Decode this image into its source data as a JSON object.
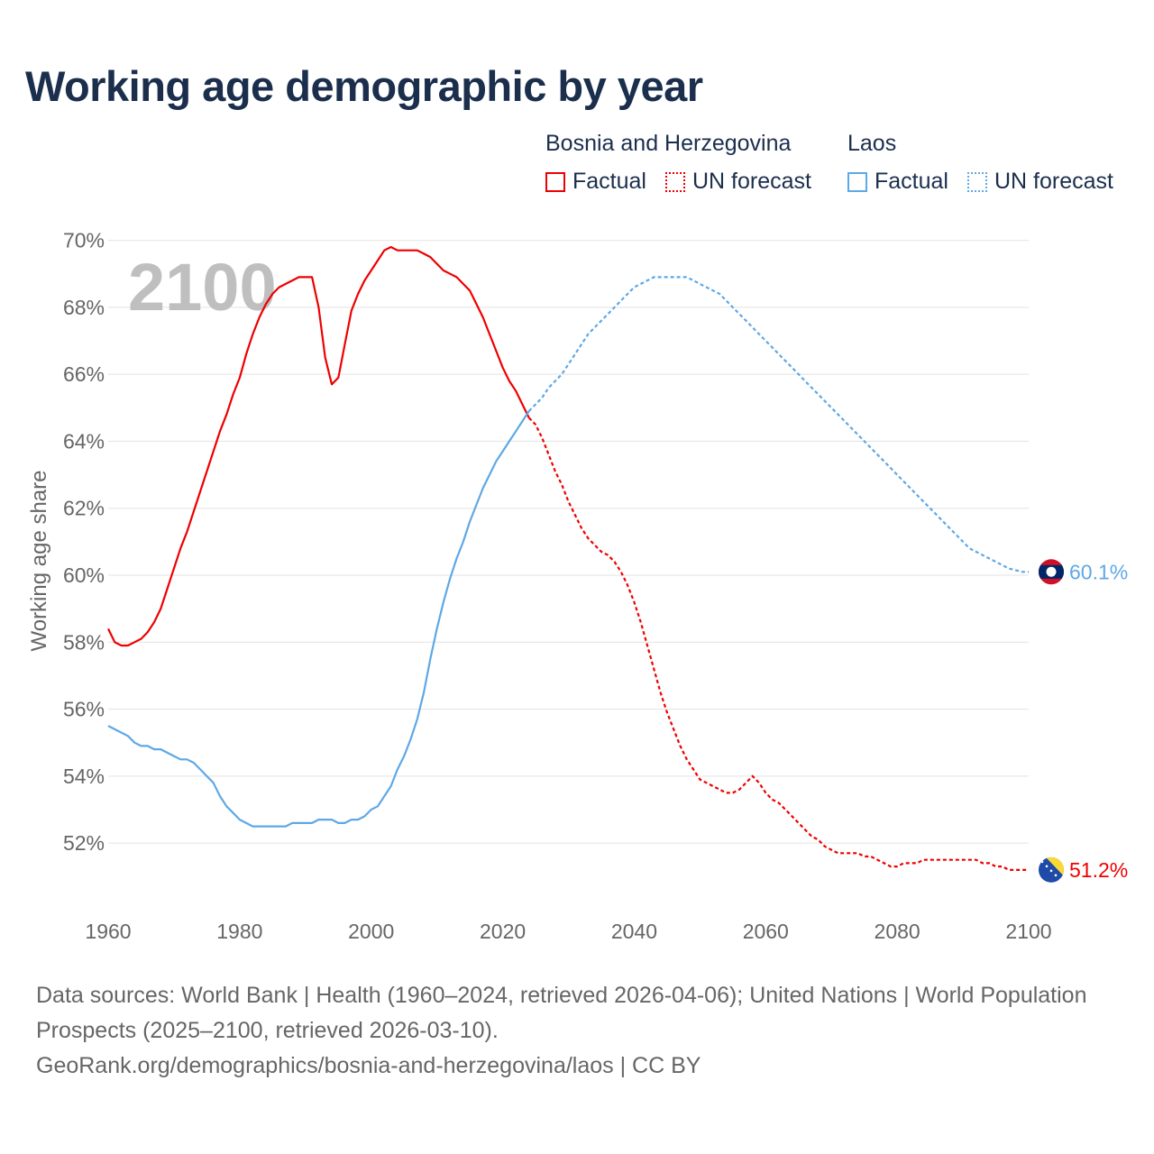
{
  "title": "Working age demographic by year",
  "legend": {
    "groups": [
      {
        "name": "Bosnia and Herzegovina",
        "color": "#ee0000",
        "factual_label": "Factual",
        "forecast_label": "UN forecast"
      },
      {
        "name": "Laos",
        "color": "#5ea8e6",
        "factual_label": "Factual",
        "forecast_label": "UN forecast"
      }
    ]
  },
  "year_overlay": "2100",
  "footer": {
    "sources": "Data sources: World Bank | Health (1960–2024, retrieved 2026-04-06); United Nations | World Population Prospects (2025–2100, retrieved 2026-03-10).",
    "link": "GeoRank.org/demographics/bosnia-and-herzegovina/laos | CC BY"
  },
  "chart_data": {
    "type": "line",
    "title": "Working age demographic by year",
    "xlabel": "",
    "ylabel": "Working age share",
    "xlim": [
      1960,
      2100
    ],
    "ylim": [
      50.2,
      70.5
    ],
    "x_ticks": [
      1960,
      1980,
      2000,
      2020,
      2040,
      2060,
      2080,
      2100
    ],
    "y_ticks": [
      52,
      54,
      56,
      58,
      60,
      62,
      64,
      66,
      68,
      70
    ],
    "y_tick_suffix": "%",
    "grid": true,
    "factual_end_year": 2024,
    "series": [
      {
        "name": "Bosnia and Herzegovina",
        "color": "#ee0000",
        "end_label": "51.2%",
        "flag": "bosnia-flag",
        "points": [
          [
            1960,
            58.4
          ],
          [
            1961,
            58.0
          ],
          [
            1962,
            57.9
          ],
          [
            1963,
            57.9
          ],
          [
            1964,
            58.0
          ],
          [
            1965,
            58.1
          ],
          [
            1966,
            58.3
          ],
          [
            1967,
            58.6
          ],
          [
            1968,
            59.0
          ],
          [
            1969,
            59.6
          ],
          [
            1970,
            60.2
          ],
          [
            1971,
            60.8
          ],
          [
            1972,
            61.3
          ],
          [
            1973,
            61.9
          ],
          [
            1974,
            62.5
          ],
          [
            1975,
            63.1
          ],
          [
            1976,
            63.7
          ],
          [
            1977,
            64.3
          ],
          [
            1978,
            64.8
          ],
          [
            1979,
            65.4
          ],
          [
            1980,
            65.9
          ],
          [
            1981,
            66.6
          ],
          [
            1982,
            67.2
          ],
          [
            1983,
            67.7
          ],
          [
            1984,
            68.1
          ],
          [
            1985,
            68.4
          ],
          [
            1986,
            68.6
          ],
          [
            1987,
            68.7
          ],
          [
            1988,
            68.8
          ],
          [
            1989,
            68.9
          ],
          [
            1990,
            68.9
          ],
          [
            1991,
            68.9
          ],
          [
            1992,
            68.0
          ],
          [
            1993,
            66.5
          ],
          [
            1994,
            65.7
          ],
          [
            1995,
            65.9
          ],
          [
            1996,
            66.9
          ],
          [
            1997,
            67.9
          ],
          [
            1998,
            68.4
          ],
          [
            1999,
            68.8
          ],
          [
            2000,
            69.1
          ],
          [
            2001,
            69.4
          ],
          [
            2002,
            69.7
          ],
          [
            2003,
            69.8
          ],
          [
            2004,
            69.7
          ],
          [
            2005,
            69.7
          ],
          [
            2006,
            69.7
          ],
          [
            2007,
            69.7
          ],
          [
            2008,
            69.6
          ],
          [
            2009,
            69.5
          ],
          [
            2010,
            69.3
          ],
          [
            2011,
            69.1
          ],
          [
            2012,
            69.0
          ],
          [
            2013,
            68.9
          ],
          [
            2014,
            68.7
          ],
          [
            2015,
            68.5
          ],
          [
            2016,
            68.1
          ],
          [
            2017,
            67.7
          ],
          [
            2018,
            67.2
          ],
          [
            2019,
            66.7
          ],
          [
            2020,
            66.2
          ],
          [
            2021,
            65.8
          ],
          [
            2022,
            65.5
          ],
          [
            2023,
            65.1
          ],
          [
            2024,
            64.7
          ],
          [
            2025,
            64.5
          ],
          [
            2026,
            64.1
          ],
          [
            2027,
            63.6
          ],
          [
            2028,
            63.1
          ],
          [
            2029,
            62.7
          ],
          [
            2030,
            62.2
          ],
          [
            2031,
            61.8
          ],
          [
            2032,
            61.4
          ],
          [
            2033,
            61.1
          ],
          [
            2034,
            60.9
          ],
          [
            2035,
            60.7
          ],
          [
            2036,
            60.6
          ],
          [
            2037,
            60.4
          ],
          [
            2038,
            60.1
          ],
          [
            2039,
            59.7
          ],
          [
            2040,
            59.2
          ],
          [
            2041,
            58.6
          ],
          [
            2042,
            57.9
          ],
          [
            2043,
            57.2
          ],
          [
            2044,
            56.5
          ],
          [
            2045,
            55.9
          ],
          [
            2046,
            55.4
          ],
          [
            2047,
            54.9
          ],
          [
            2048,
            54.5
          ],
          [
            2049,
            54.2
          ],
          [
            2050,
            53.9
          ],
          [
            2051,
            53.8
          ],
          [
            2052,
            53.7
          ],
          [
            2053,
            53.6
          ],
          [
            2054,
            53.5
          ],
          [
            2055,
            53.5
          ],
          [
            2056,
            53.6
          ],
          [
            2057,
            53.8
          ],
          [
            2058,
            54.0
          ],
          [
            2059,
            53.8
          ],
          [
            2060,
            53.5
          ],
          [
            2061,
            53.3
          ],
          [
            2062,
            53.2
          ],
          [
            2063,
            53.0
          ],
          [
            2064,
            52.8
          ],
          [
            2065,
            52.6
          ],
          [
            2066,
            52.4
          ],
          [
            2067,
            52.2
          ],
          [
            2068,
            52.1
          ],
          [
            2069,
            51.9
          ],
          [
            2070,
            51.8
          ],
          [
            2071,
            51.7
          ],
          [
            2072,
            51.7
          ],
          [
            2073,
            51.7
          ],
          [
            2074,
            51.7
          ],
          [
            2075,
            51.6
          ],
          [
            2076,
            51.6
          ],
          [
            2077,
            51.5
          ],
          [
            2078,
            51.4
          ],
          [
            2079,
            51.3
          ],
          [
            2080,
            51.3
          ],
          [
            2081,
            51.4
          ],
          [
            2082,
            51.4
          ],
          [
            2083,
            51.4
          ],
          [
            2084,
            51.5
          ],
          [
            2085,
            51.5
          ],
          [
            2086,
            51.5
          ],
          [
            2087,
            51.5
          ],
          [
            2088,
            51.5
          ],
          [
            2089,
            51.5
          ],
          [
            2090,
            51.5
          ],
          [
            2091,
            51.5
          ],
          [
            2092,
            51.5
          ],
          [
            2093,
            51.4
          ],
          [
            2094,
            51.4
          ],
          [
            2095,
            51.3
          ],
          [
            2096,
            51.3
          ],
          [
            2097,
            51.2
          ],
          [
            2098,
            51.2
          ],
          [
            2099,
            51.2
          ],
          [
            2100,
            51.2
          ]
        ]
      },
      {
        "name": "Laos",
        "color": "#5ea8e6",
        "end_label": "60.1%",
        "flag": "laos-flag",
        "points": [
          [
            1960,
            55.5
          ],
          [
            1961,
            55.4
          ],
          [
            1962,
            55.3
          ],
          [
            1963,
            55.2
          ],
          [
            1964,
            55.0
          ],
          [
            1965,
            54.9
          ],
          [
            1966,
            54.9
          ],
          [
            1967,
            54.8
          ],
          [
            1968,
            54.8
          ],
          [
            1969,
            54.7
          ],
          [
            1970,
            54.6
          ],
          [
            1971,
            54.5
          ],
          [
            1972,
            54.5
          ],
          [
            1973,
            54.4
          ],
          [
            1974,
            54.2
          ],
          [
            1975,
            54.0
          ],
          [
            1976,
            53.8
          ],
          [
            1977,
            53.4
          ],
          [
            1978,
            53.1
          ],
          [
            1979,
            52.9
          ],
          [
            1980,
            52.7
          ],
          [
            1981,
            52.6
          ],
          [
            1982,
            52.5
          ],
          [
            1983,
            52.5
          ],
          [
            1984,
            52.5
          ],
          [
            1985,
            52.5
          ],
          [
            1986,
            52.5
          ],
          [
            1987,
            52.5
          ],
          [
            1988,
            52.6
          ],
          [
            1989,
            52.6
          ],
          [
            1990,
            52.6
          ],
          [
            1991,
            52.6
          ],
          [
            1992,
            52.7
          ],
          [
            1993,
            52.7
          ],
          [
            1994,
            52.7
          ],
          [
            1995,
            52.6
          ],
          [
            1996,
            52.6
          ],
          [
            1997,
            52.7
          ],
          [
            1998,
            52.7
          ],
          [
            1999,
            52.8
          ],
          [
            2000,
            53.0
          ],
          [
            2001,
            53.1
          ],
          [
            2002,
            53.4
          ],
          [
            2003,
            53.7
          ],
          [
            2004,
            54.2
          ],
          [
            2005,
            54.6
          ],
          [
            2006,
            55.1
          ],
          [
            2007,
            55.7
          ],
          [
            2008,
            56.5
          ],
          [
            2009,
            57.5
          ],
          [
            2010,
            58.4
          ],
          [
            2011,
            59.2
          ],
          [
            2012,
            59.9
          ],
          [
            2013,
            60.5
          ],
          [
            2014,
            61.0
          ],
          [
            2015,
            61.6
          ],
          [
            2016,
            62.1
          ],
          [
            2017,
            62.6
          ],
          [
            2018,
            63.0
          ],
          [
            2019,
            63.4
          ],
          [
            2020,
            63.7
          ],
          [
            2021,
            64.0
          ],
          [
            2022,
            64.3
          ],
          [
            2023,
            64.6
          ],
          [
            2024,
            64.9
          ],
          [
            2025,
            65.1
          ],
          [
            2026,
            65.3
          ],
          [
            2027,
            65.6
          ],
          [
            2028,
            65.8
          ],
          [
            2029,
            66.0
          ],
          [
            2030,
            66.3
          ],
          [
            2031,
            66.6
          ],
          [
            2032,
            66.9
          ],
          [
            2033,
            67.2
          ],
          [
            2034,
            67.4
          ],
          [
            2035,
            67.6
          ],
          [
            2036,
            67.8
          ],
          [
            2037,
            68.0
          ],
          [
            2038,
            68.2
          ],
          [
            2039,
            68.4
          ],
          [
            2040,
            68.6
          ],
          [
            2041,
            68.7
          ],
          [
            2042,
            68.8
          ],
          [
            2043,
            68.9
          ],
          [
            2044,
            68.9
          ],
          [
            2045,
            68.9
          ],
          [
            2046,
            68.9
          ],
          [
            2047,
            68.9
          ],
          [
            2048,
            68.9
          ],
          [
            2049,
            68.8
          ],
          [
            2050,
            68.7
          ],
          [
            2051,
            68.6
          ],
          [
            2052,
            68.5
          ],
          [
            2053,
            68.4
          ],
          [
            2054,
            68.2
          ],
          [
            2055,
            68.0
          ],
          [
            2056,
            67.8
          ],
          [
            2057,
            67.6
          ],
          [
            2058,
            67.4
          ],
          [
            2059,
            67.2
          ],
          [
            2060,
            67.0
          ],
          [
            2061,
            66.8
          ],
          [
            2062,
            66.6
          ],
          [
            2063,
            66.4
          ],
          [
            2064,
            66.2
          ],
          [
            2065,
            66.0
          ],
          [
            2066,
            65.8
          ],
          [
            2067,
            65.6
          ],
          [
            2068,
            65.4
          ],
          [
            2069,
            65.2
          ],
          [
            2070,
            65.0
          ],
          [
            2071,
            64.8
          ],
          [
            2072,
            64.6
          ],
          [
            2073,
            64.4
          ],
          [
            2074,
            64.2
          ],
          [
            2075,
            64.0
          ],
          [
            2076,
            63.8
          ],
          [
            2077,
            63.6
          ],
          [
            2078,
            63.4
          ],
          [
            2079,
            63.2
          ],
          [
            2080,
            63.0
          ],
          [
            2081,
            62.8
          ],
          [
            2082,
            62.6
          ],
          [
            2083,
            62.4
          ],
          [
            2084,
            62.2
          ],
          [
            2085,
            62.0
          ],
          [
            2086,
            61.8
          ],
          [
            2087,
            61.6
          ],
          [
            2088,
            61.4
          ],
          [
            2089,
            61.2
          ],
          [
            2090,
            61.0
          ],
          [
            2091,
            60.8
          ],
          [
            2092,
            60.7
          ],
          [
            2093,
            60.6
          ],
          [
            2094,
            60.5
          ],
          [
            2095,
            60.4
          ],
          [
            2096,
            60.3
          ],
          [
            2097,
            60.2
          ],
          [
            2098,
            60.15
          ],
          [
            2099,
            60.1
          ],
          [
            2100,
            60.1
          ]
        ]
      }
    ]
  }
}
